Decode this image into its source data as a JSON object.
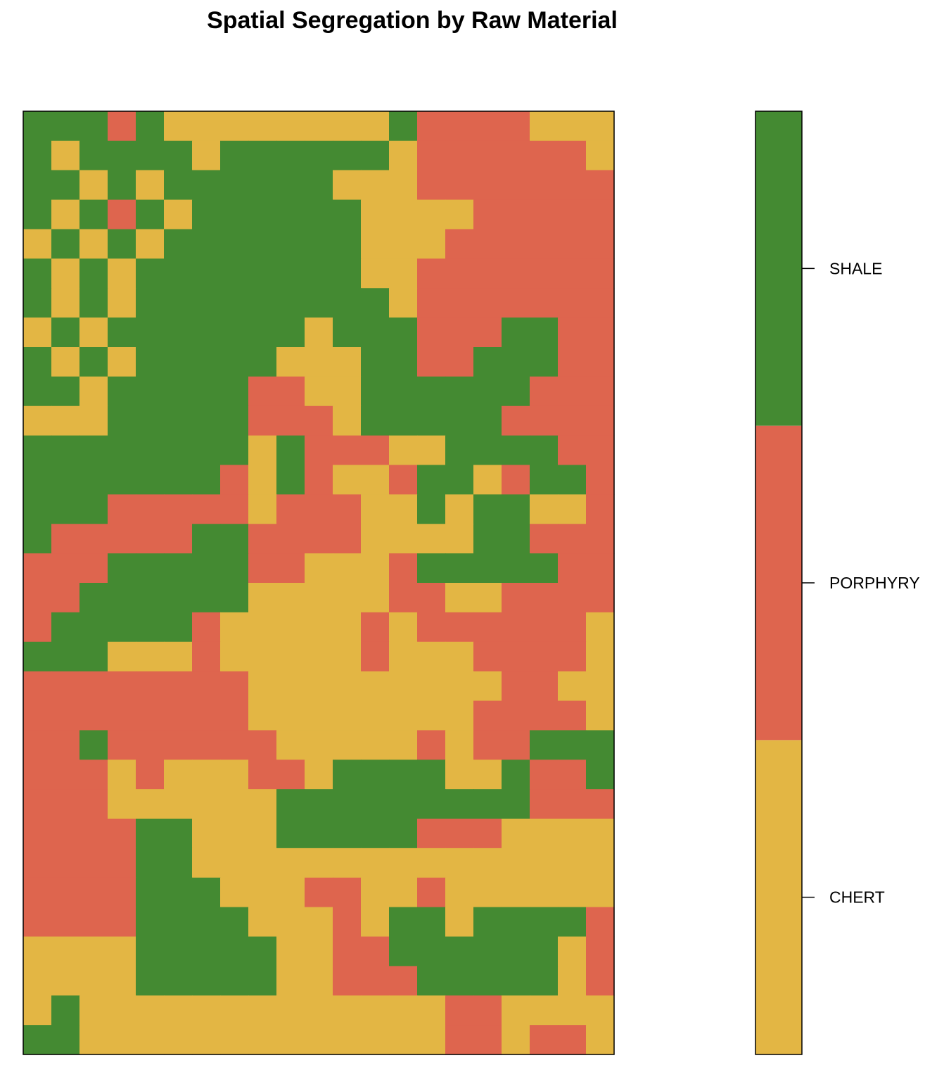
{
  "chart_data": {
    "type": "heatmap",
    "title": "Spatial Segregation by Raw Material",
    "xlabel": "",
    "ylabel": "",
    "x_axis_shown": false,
    "y_axis_shown": false,
    "legend_placement": "right",
    "categories": [
      {
        "name": "CHERT",
        "color": "#E3B644"
      },
      {
        "name": "PORPHYRY",
        "color": "#DE654E"
      },
      {
        "name": "SHALE",
        "color": "#448A32"
      }
    ],
    "note_grid": "Category map, 21 columns x 32 rows (row 0 = top), cell value = category index: 0 CHERT, 1 PORPHYRY, 2 SHALE",
    "grid": [
      [
        2,
        2,
        2,
        1,
        2,
        0,
        0,
        0,
        0,
        0,
        0,
        0,
        0,
        2,
        1,
        1,
        1,
        1,
        0,
        0,
        0
      ],
      [
        2,
        0,
        2,
        2,
        2,
        2,
        0,
        2,
        2,
        2,
        2,
        2,
        2,
        0,
        1,
        1,
        1,
        1,
        1,
        1,
        0
      ],
      [
        2,
        2,
        0,
        2,
        0,
        2,
        2,
        2,
        2,
        2,
        2,
        0,
        0,
        0,
        1,
        1,
        1,
        1,
        1,
        1,
        1
      ],
      [
        2,
        0,
        2,
        1,
        2,
        0,
        2,
        2,
        2,
        2,
        2,
        2,
        0,
        0,
        0,
        0,
        1,
        1,
        1,
        1,
        1
      ],
      [
        0,
        2,
        0,
        2,
        0,
        2,
        2,
        2,
        2,
        2,
        2,
        2,
        0,
        0,
        0,
        1,
        1,
        1,
        1,
        1,
        1
      ],
      [
        2,
        0,
        2,
        0,
        2,
        2,
        2,
        2,
        2,
        2,
        2,
        2,
        0,
        0,
        1,
        1,
        1,
        1,
        1,
        1,
        1
      ],
      [
        2,
        0,
        2,
        0,
        2,
        2,
        2,
        2,
        2,
        2,
        2,
        2,
        2,
        0,
        1,
        1,
        1,
        1,
        1,
        1,
        1
      ],
      [
        0,
        2,
        0,
        2,
        2,
        2,
        2,
        2,
        2,
        2,
        0,
        2,
        2,
        2,
        1,
        1,
        1,
        2,
        2,
        1,
        1
      ],
      [
        2,
        0,
        2,
        0,
        2,
        2,
        2,
        2,
        2,
        0,
        0,
        0,
        2,
        2,
        1,
        1,
        2,
        2,
        2,
        1,
        1
      ],
      [
        2,
        2,
        0,
        2,
        2,
        2,
        2,
        2,
        1,
        1,
        0,
        0,
        2,
        2,
        2,
        2,
        2,
        2,
        1,
        1,
        1
      ],
      [
        0,
        0,
        0,
        2,
        2,
        2,
        2,
        2,
        1,
        1,
        1,
        0,
        2,
        2,
        2,
        2,
        2,
        1,
        1,
        1,
        1
      ],
      [
        2,
        2,
        2,
        2,
        2,
        2,
        2,
        2,
        0,
        2,
        1,
        1,
        1,
        0,
        0,
        2,
        2,
        2,
        2,
        1,
        1
      ],
      [
        2,
        2,
        2,
        2,
        2,
        2,
        2,
        1,
        0,
        2,
        1,
        0,
        0,
        1,
        2,
        2,
        0,
        1,
        2,
        2,
        1
      ],
      [
        2,
        2,
        2,
        1,
        1,
        1,
        1,
        1,
        0,
        1,
        1,
        1,
        0,
        0,
        2,
        0,
        2,
        2,
        0,
        0,
        1
      ],
      [
        2,
        1,
        1,
        1,
        1,
        1,
        2,
        2,
        1,
        1,
        1,
        1,
        0,
        0,
        0,
        0,
        2,
        2,
        1,
        1,
        1
      ],
      [
        1,
        1,
        1,
        2,
        2,
        2,
        2,
        2,
        1,
        1,
        0,
        0,
        0,
        1,
        2,
        2,
        2,
        2,
        2,
        1,
        1
      ],
      [
        1,
        1,
        2,
        2,
        2,
        2,
        2,
        2,
        0,
        0,
        0,
        0,
        0,
        1,
        1,
        0,
        0,
        1,
        1,
        1,
        1
      ],
      [
        1,
        2,
        2,
        2,
        2,
        2,
        1,
        0,
        0,
        0,
        0,
        0,
        1,
        0,
        1,
        1,
        1,
        1,
        1,
        1,
        0
      ],
      [
        2,
        2,
        2,
        0,
        0,
        0,
        1,
        0,
        0,
        0,
        0,
        0,
        1,
        0,
        0,
        0,
        1,
        1,
        1,
        1,
        0
      ],
      [
        1,
        1,
        1,
        1,
        1,
        1,
        1,
        1,
        0,
        0,
        0,
        0,
        0,
        0,
        0,
        0,
        0,
        1,
        1,
        0,
        0
      ],
      [
        1,
        1,
        1,
        1,
        1,
        1,
        1,
        1,
        0,
        0,
        0,
        0,
        0,
        0,
        0,
        0,
        1,
        1,
        1,
        1,
        0
      ],
      [
        1,
        1,
        2,
        1,
        1,
        1,
        1,
        1,
        1,
        0,
        0,
        0,
        0,
        0,
        1,
        0,
        1,
        1,
        2,
        2,
        2
      ],
      [
        1,
        1,
        1,
        0,
        1,
        0,
        0,
        0,
        1,
        1,
        0,
        2,
        2,
        2,
        2,
        0,
        0,
        2,
        1,
        1,
        2
      ],
      [
        1,
        1,
        1,
        0,
        0,
        0,
        0,
        0,
        0,
        2,
        2,
        2,
        2,
        2,
        2,
        2,
        2,
        2,
        1,
        1,
        1
      ],
      [
        1,
        1,
        1,
        1,
        2,
        2,
        0,
        0,
        0,
        2,
        2,
        2,
        2,
        2,
        1,
        1,
        1,
        0,
        0,
        0,
        0
      ],
      [
        1,
        1,
        1,
        1,
        2,
        2,
        0,
        0,
        0,
        0,
        0,
        0,
        0,
        0,
        0,
        0,
        0,
        0,
        0,
        0,
        0
      ],
      [
        1,
        1,
        1,
        1,
        2,
        2,
        2,
        0,
        0,
        0,
        1,
        1,
        0,
        0,
        1,
        0,
        0,
        0,
        0,
        0,
        0
      ],
      [
        1,
        1,
        1,
        1,
        2,
        2,
        2,
        2,
        0,
        0,
        0,
        1,
        0,
        2,
        2,
        0,
        2,
        2,
        2,
        2,
        1
      ],
      [
        0,
        0,
        0,
        0,
        2,
        2,
        2,
        2,
        2,
        0,
        0,
        1,
        1,
        2,
        2,
        2,
        2,
        2,
        2,
        0,
        1
      ],
      [
        0,
        0,
        0,
        0,
        2,
        2,
        2,
        2,
        2,
        0,
        0,
        1,
        1,
        1,
        2,
        2,
        2,
        2,
        2,
        0,
        1
      ],
      [
        0,
        2,
        0,
        0,
        0,
        0,
        0,
        0,
        0,
        0,
        0,
        0,
        0,
        0,
        0,
        1,
        1,
        0,
        0,
        0,
        0
      ],
      [
        2,
        2,
        0,
        0,
        0,
        0,
        0,
        0,
        0,
        0,
        0,
        0,
        0,
        0,
        0,
        1,
        1,
        0,
        1,
        1,
        0
      ]
    ]
  }
}
